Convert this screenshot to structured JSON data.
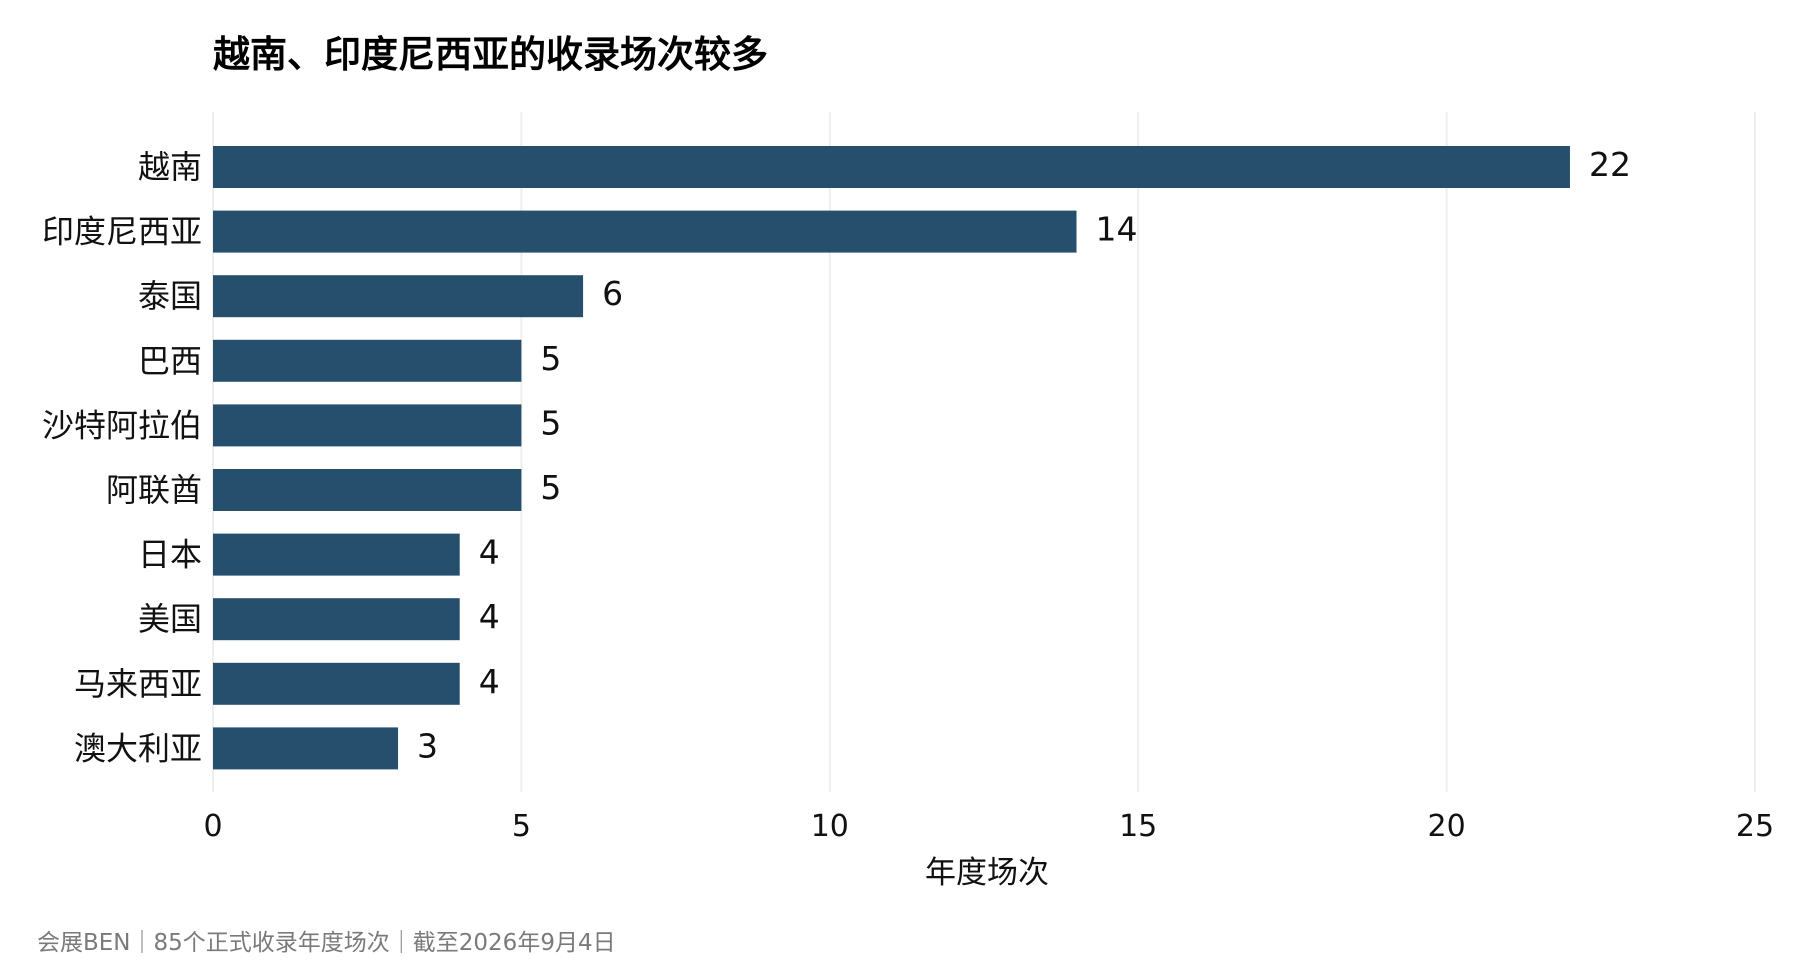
{
  "chart_data": {
    "type": "bar",
    "orientation": "horizontal",
    "title": "越南、印度尼西亚的收录场次较多",
    "categories": [
      "越南",
      "印度尼西亚",
      "泰国",
      "巴西",
      "沙特阿拉伯",
      "阿联酋",
      "日本",
      "美国",
      "马来西亚",
      "澳大利亚"
    ],
    "values": [
      22,
      14,
      6,
      5,
      5,
      5,
      4,
      4,
      4,
      3
    ],
    "xlabel": "年度场次",
    "ylabel": "",
    "xlim": [
      0,
      25
    ],
    "xticks": [
      0,
      5,
      10,
      15,
      20,
      25
    ],
    "xtick_labels": [
      "0",
      "5",
      "10",
      "15",
      "20",
      "25"
    ],
    "grid": "vertical",
    "legend": "none",
    "bar_color": "#264f6e",
    "data_labels": true,
    "caption": "会展BEN｜85个正式收录年度场次｜截至2026年9月4日"
  }
}
